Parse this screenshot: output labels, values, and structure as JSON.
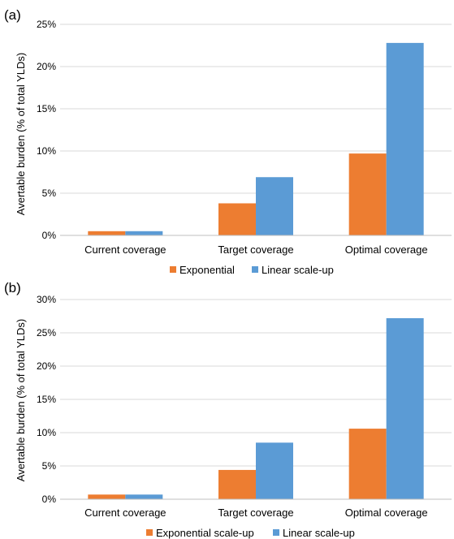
{
  "chart_data": [
    {
      "type": "bar",
      "panel_label": "(a)",
      "categories": [
        "Current coverage",
        "Target coverage",
        "Optimal coverage"
      ],
      "series": [
        {
          "name": "Exponential",
          "values": [
            0.5,
            3.8,
            9.7
          ],
          "color": "#ed7d31"
        },
        {
          "name": "Linear scale-up",
          "values": [
            0.5,
            6.9,
            22.8
          ],
          "color": "#5b9bd5"
        }
      ],
      "yticks": [
        "0%",
        "5%",
        "10%",
        "15%",
        "20%",
        "25%"
      ],
      "ylim": [
        0,
        25
      ],
      "ylabel": "Avertable burden (% of total YLDs)",
      "xlabel": "",
      "grid": true,
      "legend_position": "bottom"
    },
    {
      "type": "bar",
      "panel_label": "(b)",
      "categories": [
        "Current coverage",
        "Target coverage",
        "Optimal coverage"
      ],
      "series": [
        {
          "name": "Exponential scale-up",
          "values": [
            0.7,
            4.4,
            10.6
          ],
          "color": "#ed7d31"
        },
        {
          "name": "Linear scale-up",
          "values": [
            0.7,
            8.5,
            27.2
          ],
          "color": "#5b9bd5"
        }
      ],
      "yticks": [
        "0%",
        "5%",
        "10%",
        "15%",
        "20%",
        "25%",
        "30%"
      ],
      "ylim": [
        0,
        30
      ],
      "ylabel": "Avertable burden (% of total YLDs)",
      "xlabel": "",
      "grid": true,
      "legend_position": "bottom"
    }
  ]
}
